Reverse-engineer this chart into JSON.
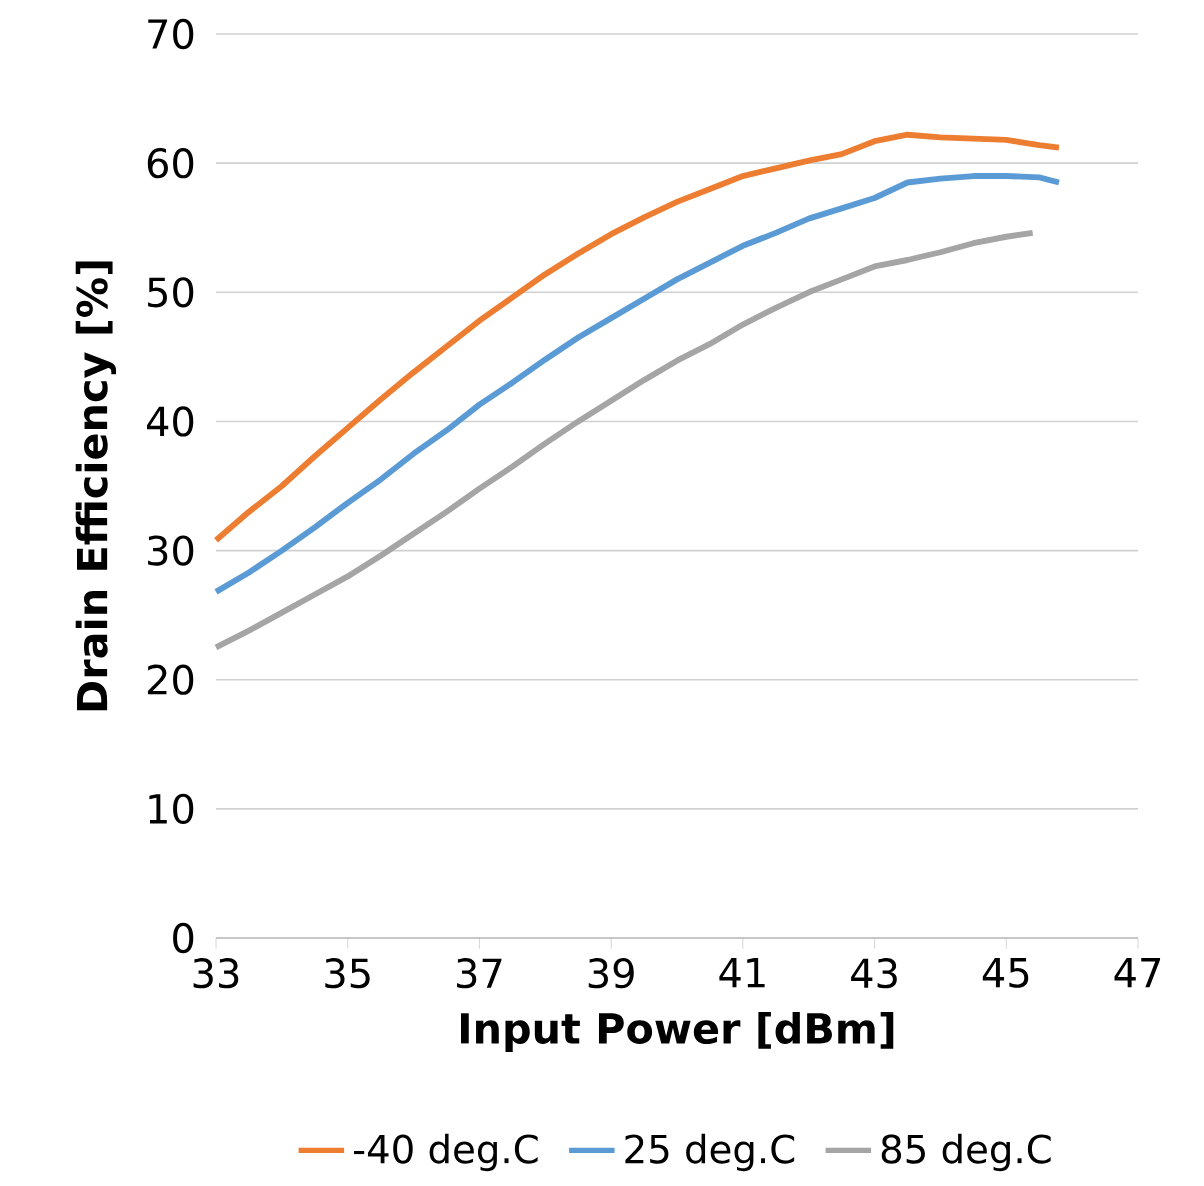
{
  "chart_data": {
    "type": "line",
    "xlabel": "Input Power [dBm]",
    "ylabel": "Drain Efficiency [%]",
    "xlim": [
      33,
      47
    ],
    "ylim": [
      0,
      70
    ],
    "xticks": [
      33,
      35,
      37,
      39,
      41,
      43,
      45,
      47
    ],
    "yticks": [
      0,
      10,
      20,
      30,
      40,
      50,
      60,
      70
    ],
    "grid": "y",
    "legend": "bottom",
    "marker": "none",
    "line_style": "solid",
    "series": [
      {
        "name": "-40 deg.C",
        "color": "#ed7d31",
        "x": [
          33,
          33.5,
          34,
          34.5,
          35,
          35.5,
          36,
          36.5,
          37,
          37.5,
          38,
          38.5,
          39,
          39.5,
          40,
          40.5,
          41,
          41.5,
          42,
          42.5,
          43,
          43.5,
          44,
          44.5,
          45,
          45.5,
          45.8
        ],
        "values": [
          30.8,
          33,
          35,
          37.3,
          39.5,
          41.7,
          43.8,
          45.8,
          47.8,
          49.6,
          51.4,
          53,
          54.5,
          55.8,
          57,
          58,
          59,
          59.6,
          60.2,
          60.7,
          61.7,
          62.2,
          62,
          61.9,
          61.8,
          61.4,
          61.2
        ]
      },
      {
        "name": "25 deg.C",
        "color": "#5b9bd5",
        "x": [
          33,
          33.5,
          34,
          34.5,
          35,
          35.5,
          36,
          36.5,
          37,
          37.5,
          38,
          38.5,
          39,
          39.5,
          40,
          40.5,
          41,
          41.5,
          42,
          42.5,
          43,
          43.5,
          44,
          44.5,
          45,
          45.5,
          45.8
        ],
        "values": [
          26.8,
          28.3,
          30,
          31.8,
          33.7,
          35.5,
          37.5,
          39.3,
          41.3,
          43,
          44.8,
          46.5,
          48,
          49.5,
          51,
          52.3,
          53.6,
          54.6,
          55.7,
          56.5,
          57.3,
          58.5,
          58.8,
          59,
          59,
          58.9,
          58.5
        ]
      },
      {
        "name": "85 deg.C",
        "color": "#a5a5a5",
        "x": [
          33,
          33.5,
          34,
          34.5,
          35,
          35.5,
          36,
          36.5,
          37,
          37.5,
          38,
          38.5,
          39,
          39.5,
          40,
          40.5,
          41,
          41.5,
          42,
          42.5,
          43,
          43.5,
          44,
          44.5,
          45,
          45.4
        ],
        "values": [
          22.5,
          23.8,
          25.2,
          26.6,
          28,
          29.6,
          31.3,
          33,
          34.8,
          36.5,
          38.3,
          40,
          41.6,
          43.2,
          44.7,
          46,
          47.5,
          48.8,
          50,
          51,
          52,
          52.5,
          53.1,
          53.8,
          54.3,
          54.6
        ]
      }
    ]
  }
}
